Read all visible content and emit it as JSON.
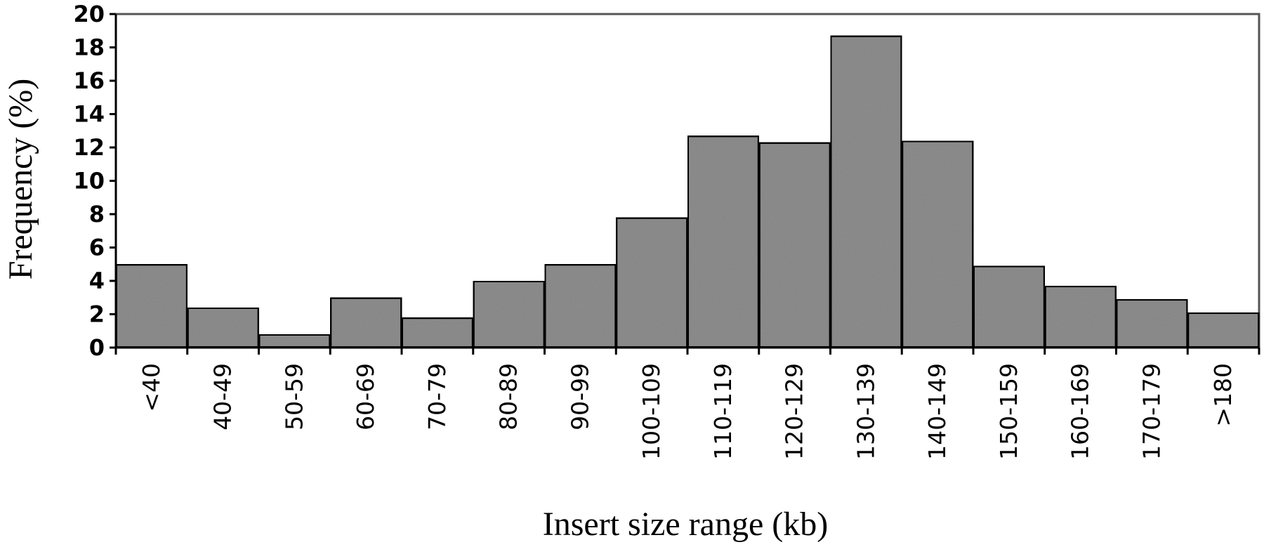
{
  "chart_data": {
    "type": "bar",
    "title": "",
    "xlabel": "Insert size range (kb)",
    "ylabel": "Frequency (%)",
    "ylim": [
      0,
      20
    ],
    "yticks": [
      "0",
      "2",
      "4",
      "6",
      "8",
      "10",
      "12",
      "14",
      "16",
      "18",
      "20"
    ],
    "categories": [
      "<40",
      "40-49",
      "50-59",
      "60-69",
      "70-79",
      "80-89",
      "90-99",
      "100-109",
      "110-119",
      "120-129",
      "130-139",
      "140-149",
      "150-159",
      "160-169",
      "170-179",
      ">180"
    ],
    "values": [
      5.0,
      2.4,
      0.8,
      3.0,
      1.8,
      4.0,
      5.0,
      7.8,
      12.7,
      12.3,
      18.7,
      12.4,
      4.9,
      3.7,
      2.9,
      2.1
    ],
    "grid": false,
    "legend": "none",
    "colors": {
      "bar_fill": "#8f8f8f",
      "bar_stroke": "#000000",
      "frame": "#555555"
    }
  }
}
